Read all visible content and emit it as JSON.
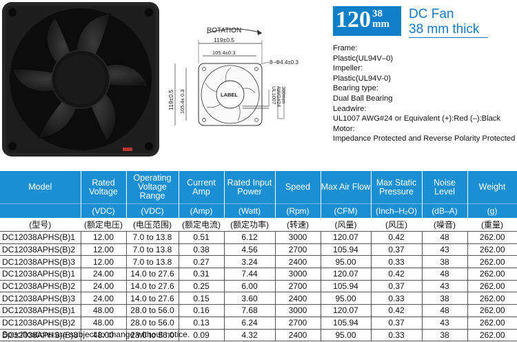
{
  "badge": {
    "size": "120",
    "thickness": "38",
    "unit": "mm"
  },
  "title": {
    "line1": "DC Fan",
    "line2": "38 mm thick"
  },
  "drawing": {
    "rotation_label": "ROTATION",
    "dim_width_outer": "119±0.5",
    "dim_width_inner": "105.4±0.3",
    "dim_hole": "8–Φ4.4±0.3",
    "dim_height_outer": "119±0.5",
    "dim_height_inner": "105.4± 0.3",
    "label_text": "LABEL",
    "wire_line1": "UL1007",
    "wire_line2": "AWG#24",
    "wire_line3": "300mm"
  },
  "specs": [
    "Frame:",
    "Plastic(UL94V–0)",
    "Impeller:",
    "Plastic(UL94V-0)",
    "Bearing type:",
    "Dual Ball Bearing",
    "Leadwire:",
    "UL1007 AWG#24 or Equivalent (+):Red (–):Black",
    "Motor:",
    "Impedance Protected and Reverse Polarity Protected"
  ],
  "table": {
    "headers": [
      "Model",
      "Rated Voltage",
      "Operating Voltage Range",
      "Current Amp",
      "Rated Input Power",
      "Speed",
      "Max Air Flow",
      "Max Static Pressure",
      "Noise Level",
      "Weight"
    ],
    "units": [
      "",
      "(VDC)",
      "(VDC)",
      "(Amp)",
      "(Watt)",
      "(Rpm)",
      "(CFM)",
      "(Inch–H₂O)",
      "(dB–A)",
      "(g)"
    ],
    "cn_units": [
      "(型号)",
      "(额定电压)",
      "(电压范围)",
      "(额定电流)",
      "(额定功率)",
      "(转速)",
      "(风量)",
      "(风压)",
      "(噪音)",
      "(重量)"
    ],
    "rows": [
      [
        "DC12038APHS(B)1",
        "12.00",
        "7.0 to 13.8",
        "0.51",
        "6.12",
        "3000",
        "120.07",
        "0.42",
        "48",
        "262.00"
      ],
      [
        "DC12038APHS(B)2",
        "12.00",
        "7.0 to 13.8",
        "0.38",
        "4.56",
        "2700",
        "105.94",
        "0.37",
        "43",
        "262.00"
      ],
      [
        "DC12038APHS(B)3",
        "12.00",
        "7.0 to 13.8",
        "0.27",
        "3.24",
        "2400",
        "95.00",
        "0.33",
        "38",
        "262.00"
      ],
      [
        "DC12038APHS(B)1",
        "24.00",
        "14.0 to 27.6",
        "0.31",
        "7.44",
        "3000",
        "120.07",
        "0.42",
        "48",
        "262.00"
      ],
      [
        "DC12038APHS(B)2",
        "24.00",
        "14.0 to 27.6",
        "0.25",
        "6.00",
        "2700",
        "105.94",
        "0.37",
        "43",
        "262.00"
      ],
      [
        "DC12038APHS(B)3",
        "24.00",
        "14.0 to 27.6",
        "0.15",
        "3.60",
        "2400",
        "95.00",
        "0.33",
        "38",
        "262.00"
      ],
      [
        "DC12038APHS(B)1",
        "48.00",
        "28.0 to 56.0",
        "0.16",
        "7.68",
        "3000",
        "120.07",
        "0.42",
        "48",
        "262.00"
      ],
      [
        "DC12038APHS(B)2",
        "48.00",
        "28.0 to 56.0",
        "0.13",
        "6.24",
        "2700",
        "105.94",
        "0.37",
        "43",
        "262.00"
      ],
      [
        "DC12038APHS)(B)3",
        "48.00",
        "28.0 to 56.0",
        "0.09",
        "4.32",
        "2400",
        "95.00",
        "0.33",
        "38",
        "262.00"
      ]
    ]
  },
  "footer": "Specifications are subject to change without notice.",
  "colors": {
    "accent": "#1a8fd4",
    "badge": "#0f7fc7",
    "title": "#1478c4"
  }
}
